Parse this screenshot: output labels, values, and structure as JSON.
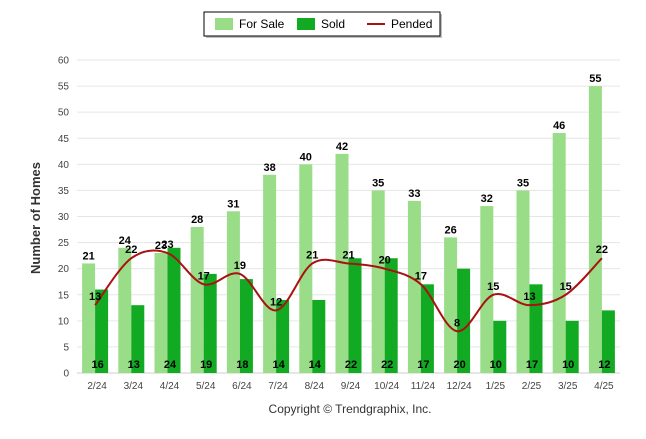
{
  "chart_data": {
    "type": "bar",
    "categories": [
      "2/24",
      "3/24",
      "4/24",
      "5/24",
      "6/24",
      "7/24",
      "8/24",
      "9/24",
      "10/24",
      "11/24",
      "12/24",
      "1/25",
      "2/25",
      "3/25",
      "4/25"
    ],
    "series": [
      {
        "name": "For Sale",
        "kind": "bar",
        "color": "#99dd88",
        "values": [
          21,
          24,
          23,
          28,
          31,
          38,
          40,
          42,
          35,
          33,
          26,
          32,
          35,
          46,
          55
        ]
      },
      {
        "name": "Sold",
        "kind": "bar",
        "color": "#11aa22",
        "values": [
          16,
          13,
          24,
          19,
          18,
          14,
          14,
          22,
          22,
          17,
          20,
          10,
          17,
          10,
          12
        ]
      },
      {
        "name": "Pended",
        "kind": "line",
        "color": "#aa1111",
        "values": [
          13,
          22,
          23,
          17,
          19,
          12,
          21,
          21,
          20,
          17,
          8,
          15,
          13,
          15,
          22
        ]
      }
    ],
    "ylabel": "Number of Homes",
    "xlabel": "",
    "ylim": [
      0,
      60
    ],
    "yticks": [
      0,
      5,
      10,
      15,
      20,
      25,
      30,
      35,
      40,
      45,
      50,
      55,
      60
    ],
    "grid": true,
    "legend_position": "top-center",
    "footer": "Copyright © Trendgraphix, Inc."
  }
}
